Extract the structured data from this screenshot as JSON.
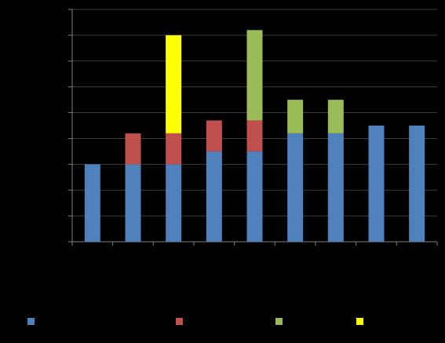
{
  "chart_data": {
    "type": "stacked-bar",
    "categories": [
      null,
      null,
      null,
      null,
      null,
      null,
      null,
      null,
      null
    ],
    "series": [
      {
        "color": "#4f81bd",
        "values": [
          3,
          3,
          3,
          3.5,
          3.5,
          4.2,
          4.2,
          4.5,
          4.5
        ]
      },
      {
        "color": "#c0504d",
        "values": [
          0,
          1.2,
          1.2,
          1.2,
          1.2,
          0,
          0,
          0,
          0
        ]
      },
      {
        "color": "#9bbb59",
        "values": [
          0,
          0,
          0,
          0,
          3.5,
          1.3,
          1.3,
          0,
          0
        ]
      },
      {
        "color": "#ffff00",
        "values": [
          0,
          0,
          3.8,
          0,
          0,
          0,
          0,
          0,
          0
        ]
      }
    ],
    "ylim": [
      0,
      9
    ],
    "yticks": [
      0,
      1,
      2,
      3,
      4,
      5,
      6,
      7,
      8,
      9
    ],
    "grid": true
  }
}
